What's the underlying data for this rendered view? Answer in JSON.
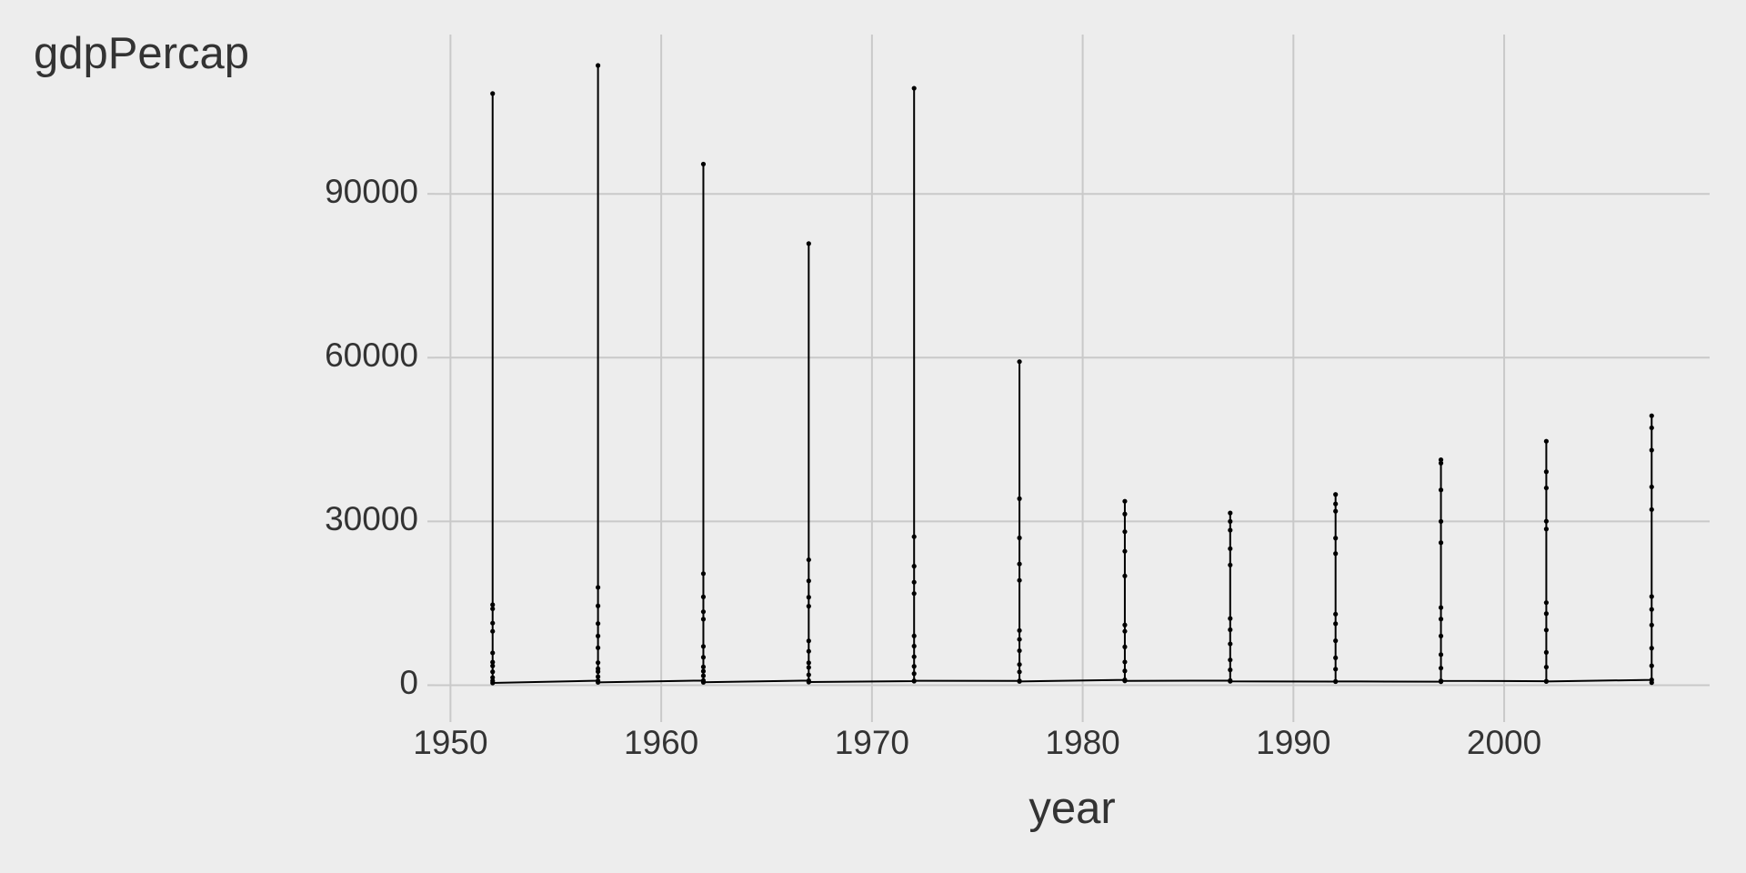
{
  "chart_data": {
    "type": "line",
    "xlabel": "year",
    "ylabel": "gdpPercap",
    "x": [
      1952,
      1952,
      1952,
      1952,
      1952,
      1952,
      1952,
      1952,
      1952,
      1952,
      1952,
      1952,
      1957,
      1957,
      1957,
      1957,
      1957,
      1957,
      1957,
      1957,
      1957,
      1957,
      1957,
      1957,
      1962,
      1962,
      1962,
      1962,
      1962,
      1962,
      1962,
      1962,
      1962,
      1962,
      1962,
      1962,
      1967,
      1967,
      1967,
      1967,
      1967,
      1967,
      1967,
      1967,
      1967,
      1967,
      1967,
      1967,
      1972,
      1972,
      1972,
      1972,
      1972,
      1972,
      1972,
      1972,
      1972,
      1972,
      1972,
      1972,
      1977,
      1977,
      1977,
      1977,
      1977,
      1977,
      1977,
      1977,
      1977,
      1977,
      1977,
      1977,
      1982,
      1982,
      1982,
      1982,
      1982,
      1982,
      1982,
      1982,
      1982,
      1982,
      1982,
      1982,
      1987,
      1987,
      1987,
      1987,
      1987,
      1987,
      1987,
      1987,
      1987,
      1987,
      1987,
      1987,
      1992,
      1992,
      1992,
      1992,
      1992,
      1992,
      1992,
      1992,
      1992,
      1992,
      1992,
      1992,
      1997,
      1997,
      1997,
      1997,
      1997,
      1997,
      1997,
      1997,
      1997,
      1997,
      1997,
      1997,
      2002,
      2002,
      2002,
      2002,
      2002,
      2002,
      2002,
      2002,
      2002,
      2002,
      2002,
      2002,
      2007,
      2007,
      2007,
      2007,
      2007,
      2007,
      2007,
      2007,
      2007,
      2007,
      2007,
      2007
    ],
    "values": [
      779,
      2449,
      5911,
      14734,
      108382,
      9867,
      3531,
      1397,
      11367,
      13990,
      4215,
      406,
      821,
      3014,
      6857,
      17909,
      113523,
      11283,
      4128,
      1562,
      9012,
      14529,
      2487,
      519,
      853,
      2551,
      7102,
      20431,
      95458,
      16173,
      5108,
      1723,
      12087,
      13456,
      3342,
      527,
      836,
      3247,
      8112,
      22966,
      80895,
      19104,
      6213,
      1899,
      14463,
      16113,
      4091,
      570,
      740,
      3450,
      9023,
      27195,
      109348,
      21798,
      7152,
      2112,
      16788,
      18866,
      5211,
      799,
      786,
      3788,
      10012,
      34167,
      59265,
      26982,
      8391,
      2432,
      19200,
      22199,
      6312,
      686,
      978,
      4251,
      11024,
      31354,
      33693,
      28118,
      9876,
      2612,
      20012,
      24533,
      7012,
      788,
      852,
      4627,
      12211,
      30001,
      31541,
      28397,
      10154,
      2801,
      22013,
      25009,
      7561,
      706,
      649,
      5012,
      13016,
      33207,
      34933,
      31873,
      11254,
      2934,
      24108,
      26938,
      8133,
      693,
      635,
      5601,
      14211,
      40675,
      41283,
      35767,
      12110,
      3124,
      26107,
      30000,
      9012,
      792,
      727,
      6011,
      15120,
      39097,
      44684,
      36126,
      13112,
      3312,
      28604,
      30034,
      10102,
      672,
      975,
      6780,
      16231,
      47143,
      49357,
      43051,
      13880,
      3550,
      32171,
      36319,
      11012,
      470
    ],
    "color": "#000000",
    "xlim": [
      1949.25,
      2009.75
    ],
    "xticks": [
      1950,
      1960,
      1970,
      1980,
      1990,
      2000
    ],
    "ylim": [
      -5423,
      119187
    ],
    "yticks": [
      0,
      30000,
      60000,
      90000
    ],
    "grid": true
  }
}
